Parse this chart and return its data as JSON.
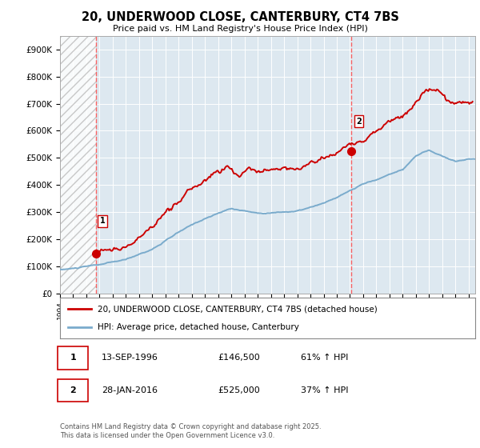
{
  "title": "20, UNDERWOOD CLOSE, CANTERBURY, CT4 7BS",
  "subtitle": "Price paid vs. HM Land Registry's House Price Index (HPI)",
  "ylim": [
    0,
    950000
  ],
  "xlim_start": 1994.0,
  "xlim_end": 2025.5,
  "background_color": "#ffffff",
  "plot_bg_color": "#dde8f0",
  "grid_color": "#ffffff",
  "hpi_line_color": "#7aabcc",
  "price_line_color": "#cc0000",
  "sale1_date": 1996.71,
  "sale1_price": 146500,
  "sale2_date": 2016.08,
  "sale2_price": 525000,
  "legend_label_price": "20, UNDERWOOD CLOSE, CANTERBURY, CT4 7BS (detached house)",
  "legend_label_hpi": "HPI: Average price, detached house, Canterbury",
  "footer": "Contains HM Land Registry data © Crown copyright and database right 2025.\nThis data is licensed under the Open Government Licence v3.0.",
  "ytick_labels": [
    "£0",
    "£100K",
    "£200K",
    "£300K",
    "£400K",
    "£500K",
    "£600K",
    "£700K",
    "£800K",
    "£900K"
  ],
  "ytick_values": [
    0,
    100000,
    200000,
    300000,
    400000,
    500000,
    600000,
    700000,
    800000,
    900000
  ]
}
